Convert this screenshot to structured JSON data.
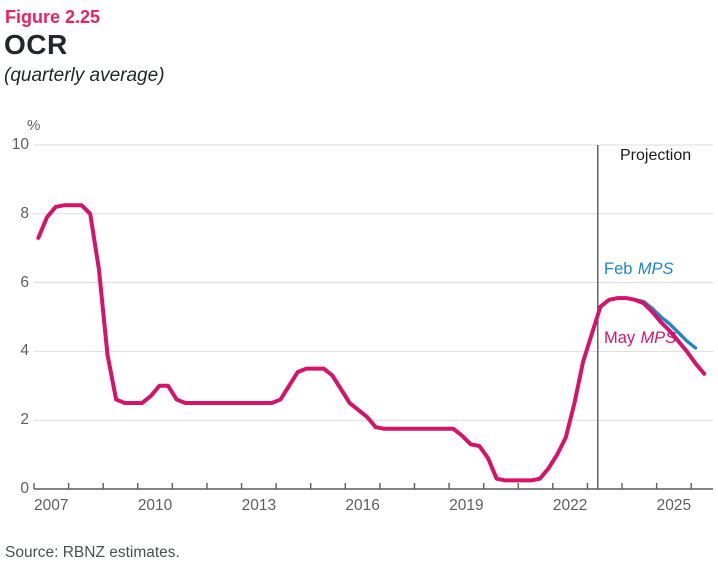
{
  "figure": {
    "label": "Figure 2.25",
    "title": "OCR",
    "subtitle": "(quarterly average)"
  },
  "source_note": "Source: RBNZ estimates.",
  "colors": {
    "figure_label": "#ee2160",
    "title_text": "#23262b",
    "axis_text": "#5d5e60",
    "grid": "#dcdcdc",
    "axis_line": "#5a5b5e",
    "projection_line": "#3a3a3a",
    "feb_mps": "#1e85c6",
    "may_mps": "#d6136b"
  },
  "chart_data": {
    "type": "line",
    "title": "OCR (quarterly average)",
    "ylabel": "%",
    "ylim": [
      0,
      10
    ],
    "y_ticks": [
      0,
      2,
      4,
      6,
      8,
      10
    ],
    "xlim": [
      2007,
      2026.63
    ],
    "x_tick_year_start": 2007,
    "x_tick_year_end": 2026,
    "x_tick_labels": [
      "2007",
      "2010",
      "2013",
      "2016",
      "2019",
      "2022",
      "2025"
    ],
    "grid": "horizontal",
    "legend_position": "inline annotations",
    "projection_divider": {
      "label": "Projection",
      "x": 2023.3
    },
    "annotations": [
      {
        "word": "Feb",
        "abbr": "MPS",
        "color": "#1e85c6"
      },
      {
        "word": "May",
        "abbr": "MPS",
        "color": "#d6136b"
      }
    ],
    "series": [
      {
        "name": "Feb MPS",
        "color": "#1e85c6",
        "x_start": 2023.125,
        "x_step": 0.25,
        "values": [
          4.5,
          5.3,
          5.5,
          5.55,
          5.55,
          5.5,
          5.45,
          5.25,
          5.0,
          4.8,
          4.55,
          4.3,
          4.1
        ]
      },
      {
        "name": "May MPS",
        "color": "#d6136b",
        "x_start": 2007.125,
        "x_step": 0.25,
        "values": [
          7.3,
          7.9,
          8.2,
          8.25,
          8.25,
          8.25,
          8.0,
          6.4,
          3.9,
          2.6,
          2.5,
          2.5,
          2.5,
          2.7,
          3.0,
          3.0,
          2.6,
          2.5,
          2.5,
          2.5,
          2.5,
          2.5,
          2.5,
          2.5,
          2.5,
          2.5,
          2.5,
          2.5,
          2.6,
          3.0,
          3.4,
          3.5,
          3.5,
          3.5,
          3.3,
          2.9,
          2.5,
          2.3,
          2.1,
          1.8,
          1.75,
          1.75,
          1.75,
          1.75,
          1.75,
          1.75,
          1.75,
          1.75,
          1.75,
          1.55,
          1.3,
          1.25,
          0.9,
          0.3,
          0.25,
          0.25,
          0.25,
          0.25,
          0.3,
          0.6,
          1.0,
          1.5,
          2.5,
          3.7,
          4.5,
          5.3,
          5.5,
          5.55,
          5.55,
          5.5,
          5.4,
          5.15,
          4.85,
          4.6,
          4.3,
          4.0,
          3.65,
          3.35
        ]
      }
    ]
  }
}
